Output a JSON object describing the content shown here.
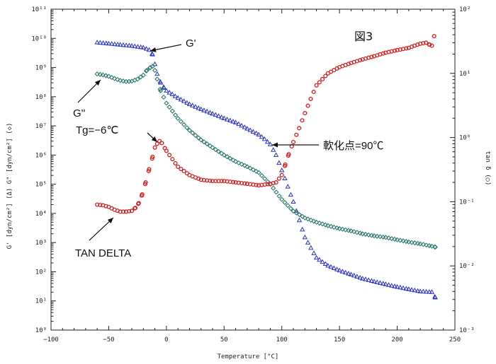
{
  "chart_data": {
    "type": "scatter",
    "title": "図3",
    "xlabel": "Temperature [°C]",
    "ylabel_left": "G' [dyn/cm²] (Δ)  G\" [dyn/cm²] (◇)",
    "ylabel_right": "tan δ (○)",
    "xlim": [
      -100,
      250
    ],
    "ylim_left": [
      1,
      100000000000
    ],
    "ylim_right": [
      0.001,
      100
    ],
    "yscale_left": "log",
    "yscale_right": "log",
    "x_ticks": [
      "−100",
      "−50",
      "0",
      "50",
      "100",
      "150",
      "200",
      "250"
    ],
    "y_ticks_left": [
      "10⁰",
      "10¹",
      "10²",
      "10³",
      "10⁴",
      "10⁵",
      "10⁶",
      "10⁷",
      "10⁸",
      "10⁹",
      "10¹⁰",
      "10¹¹"
    ],
    "y_ticks_right": [
      "10⁻³",
      "10⁻²",
      "10⁻¹",
      "10⁰",
      "10¹",
      "10²"
    ],
    "grid": false,
    "colors": {
      "G_prime": "#2a32c8",
      "G_double_prime": "#2f7a6e",
      "tan_delta": "#d81e1e"
    },
    "series": [
      {
        "name": "G'",
        "marker": "triangle",
        "axis": "left",
        "x": [
          -60,
          -50,
          -40,
          -30,
          -20,
          -15,
          -12,
          -10,
          -8,
          -5,
          -2,
          0,
          5,
          10,
          20,
          30,
          40,
          50,
          60,
          70,
          80,
          85,
          90,
          95,
          100,
          110,
          120,
          130,
          140,
          150,
          160,
          170,
          180,
          190,
          200,
          210,
          220,
          230,
          233
        ],
        "y": [
          7200000000.0,
          6600000000.0,
          6000000000.0,
          5500000000.0,
          4800000000.0,
          4000000000.0,
          2800000000.0,
          1300000000.0,
          600000000.0,
          300000000.0,
          200000000.0,
          160000000.0,
          120000000.0,
          90000000.0,
          55000000.0,
          37000000.0,
          26000000.0,
          18000000.0,
          13000000.0,
          8000000.0,
          5000000.0,
          3500000.0,
          2300000.0,
          1000000.0,
          300000.0,
          25000.0,
          1500.0,
          300.0,
          160.0,
          110.0,
          80.0,
          58.0,
          46.0,
          37.0,
          30.0,
          25.0,
          21.0,
          20.0,
          13.0
        ]
      },
      {
        "name": "G''",
        "marker": "diamond",
        "axis": "left",
        "x": [
          -60,
          -55,
          -50,
          -45,
          -40,
          -35,
          -30,
          -25,
          -20,
          -17,
          -14,
          -12,
          -10,
          -8,
          -5,
          0,
          10,
          20,
          30,
          40,
          50,
          60,
          70,
          80,
          90,
          100,
          110,
          120,
          130,
          140,
          150,
          160,
          170,
          180,
          190,
          200,
          210,
          220,
          230,
          233
        ],
        "y": [
          600000000.0,
          560000000.0,
          500000000.0,
          420000000.0,
          360000000.0,
          330000000.0,
          340000000.0,
          400000000.0,
          550000000.0,
          800000000.0,
          1000000000.0,
          1100000000.0,
          800000000.0,
          400000000.0,
          160000000.0,
          60000000.0,
          18000000.0,
          7000000.0,
          3300000.0,
          1800000.0,
          1000000.0,
          600000.0,
          400000.0,
          250000.0,
          100000.0,
          30000.0,
          12000.0,
          7000.0,
          5000.0,
          3800.0,
          3000.0,
          2500.0,
          2000.0,
          1700.0,
          1500.0,
          1250.0,
          1050.0,
          900.0,
          750.0,
          700.0
        ]
      },
      {
        "name": "TAN DELTA",
        "marker": "circle",
        "axis": "right",
        "x": [
          -60,
          -55,
          -50,
          -45,
          -40,
          -35,
          -30,
          -27,
          -24,
          -21,
          -18,
          -15,
          -12,
          -10,
          -8,
          -6,
          -4,
          0,
          10,
          20,
          30,
          40,
          50,
          60,
          70,
          80,
          90,
          95,
          100,
          103,
          106,
          110,
          115,
          120,
          125,
          130,
          140,
          150,
          160,
          170,
          180,
          190,
          200,
          210,
          215,
          220,
          225,
          228,
          230,
          232
        ],
        "y": [
          0.09,
          0.088,
          0.083,
          0.075,
          0.07,
          0.07,
          0.072,
          0.08,
          0.095,
          0.13,
          0.2,
          0.32,
          0.5,
          0.7,
          0.8,
          0.88,
          0.82,
          0.62,
          0.35,
          0.26,
          0.22,
          0.21,
          0.21,
          0.2,
          0.19,
          0.18,
          0.19,
          0.2,
          0.26,
          0.38,
          0.55,
          0.85,
          1.4,
          2.4,
          4.0,
          6.5,
          10,
          12.5,
          14.5,
          16.5,
          18.5,
          21,
          23,
          25,
          27,
          29,
          30,
          28,
          27,
          38
        ]
      }
    ],
    "annotations": [
      {
        "text": "G'",
        "target": "G'"
      },
      {
        "text": "G''",
        "target": "G''"
      },
      {
        "text": "Tg=−6℃",
        "target": "TAN DELTA"
      },
      {
        "text": "TAN DELTA",
        "target": "TAN DELTA"
      },
      {
        "text": "軟化点=90℃",
        "target": "G'"
      }
    ]
  }
}
